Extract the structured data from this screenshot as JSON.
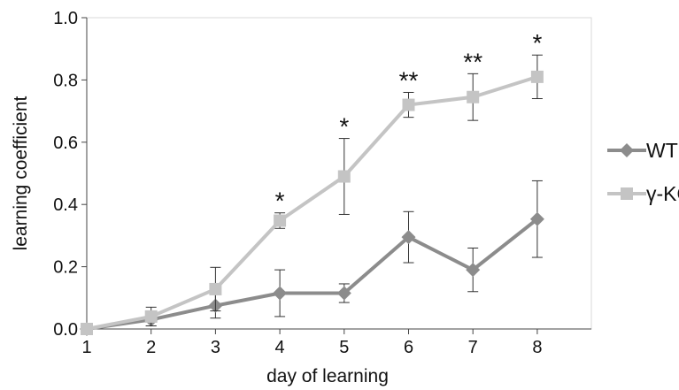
{
  "chart_data": {
    "type": "line",
    "title": "",
    "xlabel": "day of learning",
    "ylabel": "learning coefficient",
    "x": [
      1,
      2,
      3,
      4,
      5,
      6,
      7,
      8
    ],
    "x_tick_labels": [
      "1",
      "2",
      "3",
      "4",
      "5",
      "6",
      "7",
      "8"
    ],
    "y_tick_labels": [
      "0.0",
      "0.2",
      "0.4",
      "0.6",
      "0.8",
      "1.0"
    ],
    "ylim": [
      0,
      1.0
    ],
    "grid": false,
    "legend_position": "right",
    "series": [
      {
        "name": "WT",
        "marker": "diamond",
        "color": "#8c8c8c",
        "values": [
          0.0,
          0.03,
          0.075,
          0.115,
          0.115,
          0.295,
          0.19,
          0.353
        ],
        "error": [
          0.0,
          0.02,
          0.04,
          0.075,
          0.03,
          0.082,
          0.07,
          0.123
        ]
      },
      {
        "name": "γ-KO",
        "marker": "square",
        "color": "#c4c4c4",
        "values": [
          0.0,
          0.04,
          0.128,
          0.348,
          0.49,
          0.72,
          0.745,
          0.81
        ],
        "error": [
          0.0,
          0.03,
          0.07,
          0.025,
          0.122,
          0.04,
          0.075,
          0.07
        ]
      }
    ],
    "significance": [
      "",
      "",
      "",
      "*",
      "*",
      "**",
      "**",
      "*"
    ]
  }
}
